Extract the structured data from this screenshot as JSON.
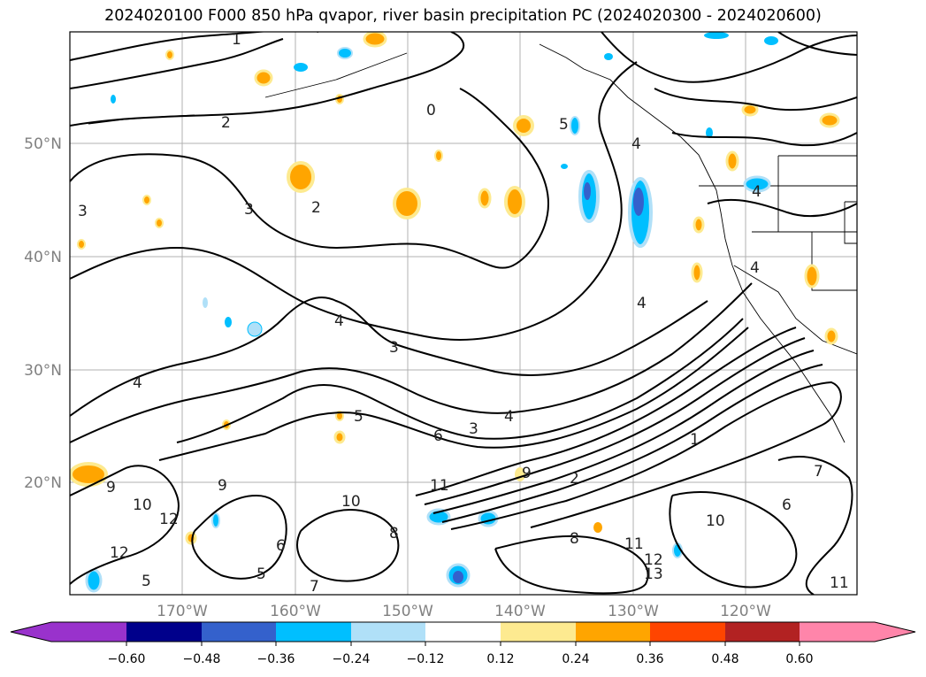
{
  "title": "2024020100 F000 850 hPa qvapor, river basin precipitation PC (2024020300 - 2024020600)",
  "map": {
    "lat_labels": [
      "50°N",
      "40°N",
      "30°N",
      "20°N"
    ],
    "lon_labels": [
      "170°W",
      "160°W",
      "150°W",
      "140°W",
      "130°W",
      "120°W"
    ],
    "contour_labels": [
      "0",
      "1",
      "2",
      "2",
      "3",
      "3",
      "4",
      "4",
      "5",
      "4",
      "4",
      "3",
      "4",
      "4",
      "5",
      "4",
      "3",
      "6",
      "9",
      "9",
      "10",
      "12",
      "12",
      "5",
      "6",
      "5",
      "7",
      "8",
      "10",
      "11",
      "11",
      "12",
      "13",
      "10",
      "11",
      "7",
      "6",
      "8",
      "9",
      "1",
      "2"
    ]
  },
  "colorbar": {
    "ticks": [
      "−0.60",
      "−0.48",
      "−0.36",
      "−0.24",
      "−0.12",
      "0.12",
      "0.24",
      "0.36",
      "0.48",
      "0.60"
    ],
    "colors": [
      "#9932cc",
      "#00008b",
      "#3461cc",
      "#00bfff",
      "#b0e0f8",
      "#ffffff",
      "#fdea90",
      "#ffa500",
      "#ff4500",
      "#b22222",
      "#ff85aa"
    ]
  }
}
